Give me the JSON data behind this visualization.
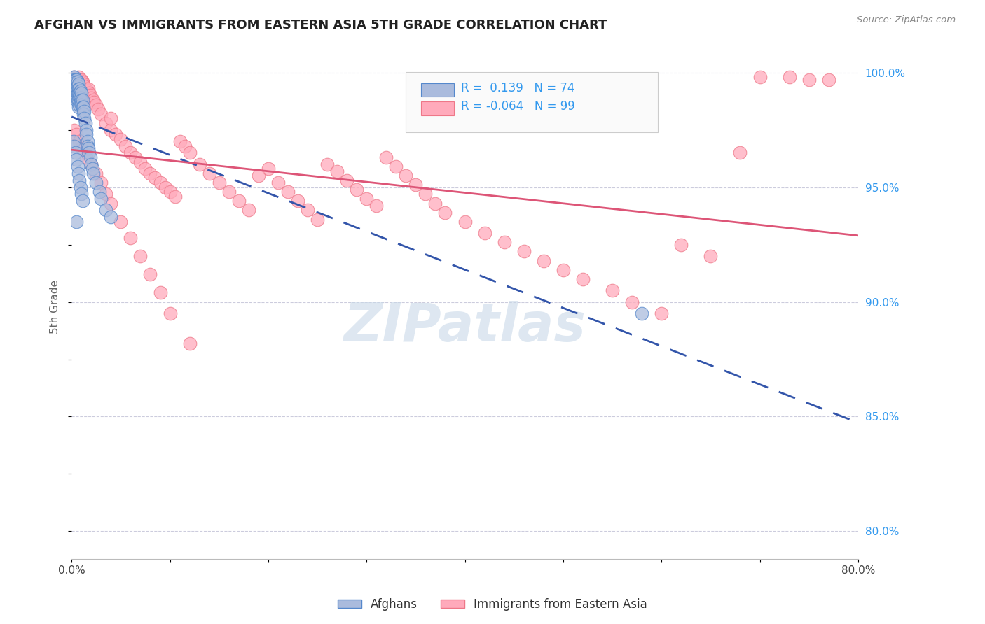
{
  "title": "AFGHAN VS IMMIGRANTS FROM EASTERN ASIA 5TH GRADE CORRELATION CHART",
  "source": "Source: ZipAtlas.com",
  "ylabel_left": "5th Grade",
  "xlim": [
    0.0,
    0.8
  ],
  "ylim": [
    0.788,
    1.008
  ],
  "xticks": [
    0.0,
    0.1,
    0.2,
    0.3,
    0.4,
    0.5,
    0.6,
    0.7,
    0.8
  ],
  "xticklabels": [
    "0.0%",
    "",
    "",
    "",
    "",
    "",
    "",
    "",
    "80.0%"
  ],
  "yticks_right": [
    0.8,
    0.85,
    0.9,
    0.95,
    1.0
  ],
  "ytick_right_labels": [
    "80.0%",
    "85.0%",
    "90.0%",
    "95.0%",
    "100.0%"
  ],
  "blue_fill_color": "#AABBDD",
  "blue_edge_color": "#5588CC",
  "pink_fill_color": "#FFAABB",
  "pink_edge_color": "#EE7788",
  "blue_line_color": "#3355AA",
  "pink_line_color": "#DD5577",
  "legend_blue_R": "0.139",
  "legend_blue_N": "74",
  "legend_pink_R": "-0.064",
  "legend_pink_N": "99",
  "watermark_text": "ZIPatlas",
  "watermark_color": "#C8D8E8",
  "grid_color": "#CCCCDD",
  "background_color": "#FFFFFF",
  "title_color": "#222222",
  "axis_label_color": "#666666",
  "right_axis_color": "#3399EE",
  "legend_box_color": "#FAFAFA",
  "blue_scatter_x": [
    0.001,
    0.002,
    0.002,
    0.002,
    0.002,
    0.002,
    0.003,
    0.003,
    0.003,
    0.003,
    0.003,
    0.003,
    0.004,
    0.004,
    0.004,
    0.004,
    0.005,
    0.005,
    0.005,
    0.005,
    0.005,
    0.006,
    0.006,
    0.006,
    0.006,
    0.007,
    0.007,
    0.007,
    0.007,
    0.007,
    0.008,
    0.008,
    0.008,
    0.008,
    0.009,
    0.009,
    0.009,
    0.01,
    0.01,
    0.01,
    0.011,
    0.011,
    0.012,
    0.012,
    0.013,
    0.013,
    0.014,
    0.015,
    0.015,
    0.016,
    0.016,
    0.017,
    0.018,
    0.019,
    0.02,
    0.021,
    0.022,
    0.025,
    0.028,
    0.03,
    0.035,
    0.04,
    0.002,
    0.003,
    0.004,
    0.005,
    0.006,
    0.007,
    0.008,
    0.009,
    0.01,
    0.011,
    0.58,
    0.005
  ],
  "blue_scatter_y": [
    0.997,
    0.998,
    0.997,
    0.996,
    0.995,
    0.993,
    0.998,
    0.997,
    0.996,
    0.994,
    0.992,
    0.99,
    0.997,
    0.996,
    0.994,
    0.991,
    0.997,
    0.996,
    0.993,
    0.99,
    0.988,
    0.996,
    0.994,
    0.991,
    0.988,
    0.995,
    0.993,
    0.991,
    0.988,
    0.985,
    0.993,
    0.991,
    0.989,
    0.986,
    0.992,
    0.989,
    0.987,
    0.991,
    0.988,
    0.986,
    0.988,
    0.985,
    0.985,
    0.982,
    0.983,
    0.98,
    0.978,
    0.975,
    0.973,
    0.97,
    0.968,
    0.967,
    0.965,
    0.963,
    0.96,
    0.958,
    0.956,
    0.952,
    0.948,
    0.945,
    0.94,
    0.937,
    0.97,
    0.968,
    0.965,
    0.962,
    0.959,
    0.956,
    0.953,
    0.95,
    0.947,
    0.944,
    0.895,
    0.935
  ],
  "pink_scatter_x": [
    0.003,
    0.005,
    0.007,
    0.008,
    0.009,
    0.01,
    0.011,
    0.012,
    0.013,
    0.015,
    0.016,
    0.017,
    0.018,
    0.019,
    0.02,
    0.022,
    0.023,
    0.025,
    0.027,
    0.03,
    0.035,
    0.04,
    0.04,
    0.045,
    0.05,
    0.055,
    0.06,
    0.065,
    0.07,
    0.075,
    0.08,
    0.085,
    0.09,
    0.095,
    0.1,
    0.105,
    0.11,
    0.115,
    0.12,
    0.13,
    0.14,
    0.15,
    0.16,
    0.17,
    0.18,
    0.19,
    0.2,
    0.21,
    0.22,
    0.23,
    0.24,
    0.25,
    0.26,
    0.27,
    0.28,
    0.29,
    0.3,
    0.31,
    0.32,
    0.33,
    0.34,
    0.35,
    0.36,
    0.37,
    0.38,
    0.4,
    0.42,
    0.44,
    0.46,
    0.48,
    0.5,
    0.52,
    0.55,
    0.57,
    0.6,
    0.62,
    0.65,
    0.68,
    0.7,
    0.73,
    0.75,
    0.77,
    0.003,
    0.005,
    0.008,
    0.01,
    0.015,
    0.02,
    0.025,
    0.03,
    0.035,
    0.04,
    0.05,
    0.06,
    0.07,
    0.08,
    0.09,
    0.1,
    0.12
  ],
  "pink_scatter_y": [
    0.998,
    0.997,
    0.998,
    0.997,
    0.996,
    0.997,
    0.996,
    0.995,
    0.994,
    0.993,
    0.992,
    0.993,
    0.991,
    0.99,
    0.989,
    0.988,
    0.987,
    0.986,
    0.984,
    0.982,
    0.978,
    0.975,
    0.98,
    0.973,
    0.971,
    0.968,
    0.965,
    0.963,
    0.961,
    0.958,
    0.956,
    0.954,
    0.952,
    0.95,
    0.948,
    0.946,
    0.97,
    0.968,
    0.965,
    0.96,
    0.956,
    0.952,
    0.948,
    0.944,
    0.94,
    0.955,
    0.958,
    0.952,
    0.948,
    0.944,
    0.94,
    0.936,
    0.96,
    0.957,
    0.953,
    0.949,
    0.945,
    0.942,
    0.963,
    0.959,
    0.955,
    0.951,
    0.947,
    0.943,
    0.939,
    0.935,
    0.93,
    0.926,
    0.922,
    0.918,
    0.914,
    0.91,
    0.905,
    0.9,
    0.895,
    0.925,
    0.92,
    0.965,
    0.998,
    0.998,
    0.997,
    0.997,
    0.975,
    0.973,
    0.97,
    0.967,
    0.963,
    0.96,
    0.956,
    0.952,
    0.947,
    0.943,
    0.935,
    0.928,
    0.92,
    0.912,
    0.904,
    0.895,
    0.882
  ]
}
